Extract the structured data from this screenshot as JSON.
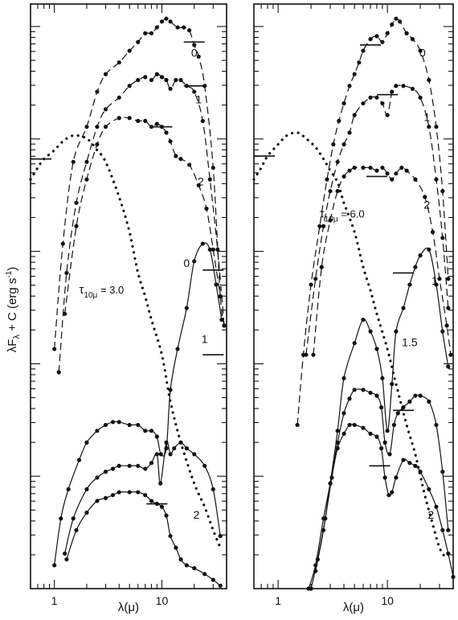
{
  "chart_data": {
    "type": "line",
    "ylabel": "λF",
    "ylabel_sub": "λ",
    "ylabel_rest": " + C (erg s",
    "ylabel_sup": "-1",
    "ylabel_close": ")",
    "yscale": "log",
    "panels": [
      {
        "xlabel": "λ(μ)",
        "xscale": "log",
        "xlim": [
          0.6,
          40
        ],
        "ylim": [
          0,
          100
        ],
        "xtick_labels": [
          {
            "value": 1,
            "label": "1"
          },
          {
            "value": 10,
            "label": "10"
          }
        ],
        "annotation": {
          "prefix": "τ",
          "sub": "10μ",
          "suffix": " = 3.0",
          "x": 1.7,
          "y": 50.5
        },
        "series": [
          {
            "label": "0",
            "style": "dashed",
            "label_at": [
              20,
              91
            ],
            "x": [
              1.0,
              1.2,
              1.5,
              2.0,
              2.5,
              3.0,
              4.0,
              5.0,
              6.0,
              7.0,
              8.0,
              9.0,
              10.0,
              11.0,
              12.0,
              14.0,
              16.0,
              18.0,
              20.0,
              22.0,
              25.0,
              30.0,
              35.0,
              38.0
            ],
            "y": [
              41,
              59,
              73,
              79,
              85,
              88,
              90,
              92,
              93.5,
              95,
              95,
              96,
              97,
              97.5,
              97,
              96,
              96,
              95.5,
              93,
              91,
              86,
              72,
              50,
              45
            ],
            "tick": {
              "x": 20,
              "y": 93.5
            }
          },
          {
            "label": "1",
            "style": "dashed",
            "label_at": [
              22,
              83
            ],
            "x": [
              1.1,
              1.3,
              1.6,
              2.0,
              2.5,
              3.0,
              4.0,
              5.0,
              6.0,
              7.0,
              8.0,
              9.0,
              10.0,
              11.0,
              12.0,
              13.5,
              15.0,
              17.0,
              20.0,
              24.0,
              28.0,
              33.0,
              38.0
            ],
            "y": [
              37,
              54,
              66,
              73,
              79,
              82,
              84,
              86,
              87,
              87.5,
              87,
              88,
              87.5,
              87,
              85.5,
              87,
              87,
              86,
              85,
              80,
              70,
              58,
              45
            ],
            "tick": {
              "x": 20,
              "y": 86
            }
          },
          {
            "label": "2",
            "style": "dashed",
            "label_at": [
              23,
              69
            ],
            "x": [
              1.25,
              1.6,
              2.0,
              2.5,
              3.0,
              4.0,
              5.0,
              6.0,
              7.0,
              8.0,
              9.0,
              10.0,
              11.0,
              12.0,
              13.5,
              15.0,
              18.0,
              22.0,
              26.0,
              30.0,
              35.0
            ],
            "y": [
              47,
              62,
              70,
              76,
              79,
              80.5,
              80.5,
              80,
              80,
              79,
              79.5,
              79,
              78,
              76.5,
              74,
              73.5,
              72.5,
              69,
              65,
              58,
              50
            ],
            "tick": {
              "x": 10,
              "y": 79
            }
          },
          {
            "label": "0",
            "style": "solid",
            "label_at": [
              17,
              55
            ],
            "x": [
              1.0,
              1.15,
              1.35,
              1.7,
              2.0,
              2.5,
              3.0,
              3.5,
              4.0,
              5.0,
              6.0,
              7.0,
              8.0,
              9.0,
              9.8,
              11.0,
              12.0,
              14.0,
              17.0,
              20.0,
              24.0,
              28.0,
              32.0,
              36.0
            ],
            "y": [
              4,
              12,
              17,
              22,
              25,
              27,
              28,
              28.5,
              28.5,
              28,
              28,
              27,
              27,
              26,
              23,
              24,
              34,
              41,
              48,
              56,
              59,
              58,
              52,
              46
            ],
            "tick": {
              "x": 30,
              "y": 54.5
            }
          },
          {
            "label": "1",
            "style": "solid",
            "label_at": [
              25,
              42
            ],
            "x": [
              1.25,
              1.5,
              2.0,
              2.5,
              3.0,
              3.5,
              4.0,
              5.0,
              6.0,
              7.0,
              8.0,
              9.0,
              9.7,
              11.0,
              12.0,
              13.0,
              15.0,
              17.0,
              20.0,
              25.0,
              30.0,
              35.0
            ],
            "y": [
              6,
              12,
              17,
              19,
              20,
              20.5,
              21,
              21,
              21,
              20.5,
              21.5,
              23,
              18,
              25,
              23,
              24,
              25,
              24,
              23,
              21,
              17,
              9
            ],
            "tick": {
              "x": 30,
              "y": 40
            }
          },
          {
            "label": "2",
            "style": "solid",
            "label_at": [
              21,
              12
            ],
            "x": [
              1.3,
              1.6,
              2.0,
              2.5,
              3.0,
              3.5,
              4.0,
              5.0,
              6.0,
              7.0,
              8.0,
              9.0,
              10.0,
              11.0,
              12.0,
              13.5,
              15.0,
              17.0,
              20.0,
              25.0,
              30.0,
              35.0
            ],
            "y": [
              5,
              10,
              13,
              15,
              15.5,
              16,
              16.5,
              16.5,
              16.5,
              16,
              15,
              14.5,
              14,
              12.5,
              9,
              7,
              5,
              4,
              3.5,
              2.5,
              1.5,
              0.5
            ],
            "tick": {
              "x": 9,
              "y": 14.5
            }
          },
          {
            "label": "",
            "style": "dotted",
            "label_at": null,
            "x": [
              0.6,
              0.7,
              0.8,
              1.0,
              1.2,
              1.5,
              2.0,
              2.5,
              3.0,
              4.0,
              5.0,
              6.0,
              7.0,
              8.0,
              10.0,
              12.0,
              15.0,
              20.0,
              25.0,
              30.0,
              35.0
            ],
            "y": [
              70,
              72,
              73.5,
              75,
              76.5,
              77.5,
              77,
              75,
              73,
              67,
              61,
              54,
              50,
              46,
              40,
              32,
              25,
              18,
              14,
              10,
              7
            ],
            "tick": {
              "x": 0.75,
              "y": 73.5
            }
          }
        ]
      },
      {
        "xlabel": "λ(μ)",
        "xscale": "log",
        "xlim": [
          0.6,
          40
        ],
        "ylim": [
          0,
          100
        ],
        "xtick_labels": [
          {
            "value": 1,
            "label": "1"
          },
          {
            "value": 10,
            "label": "10"
          }
        ],
        "annotation": {
          "prefix": "τ",
          "sub": "10μ",
          "suffix": " = 6.0",
          "x": 2.4,
          "y": 63.5
        },
        "series": [
          {
            "label": "0",
            "style": "dashed",
            "label_at": [
              21,
              91
            ],
            "x": [
              1.5,
              1.7,
              2.0,
              2.4,
              2.8,
              3.2,
              3.6,
              4.0,
              4.5,
              5.0,
              5.5,
              6.0,
              7.0,
              8.0,
              9.0,
              10.0,
              11.0,
              12.0,
              13.0,
              15.0,
              17.0,
              20.0,
              24.0,
              28.0,
              32.0,
              36.0
            ],
            "y": [
              28,
              40,
              52,
              62,
              70,
              76,
              80,
              83,
              86,
              88,
              90,
              92,
              94,
              94.5,
              93.5,
              95,
              96.5,
              97.5,
              97,
              95,
              94,
              92,
              87,
              79,
              68,
              53
            ],
            "tick": {
              "x": 7,
              "y": 93
            }
          },
          {
            "label": "1",
            "style": "dashed",
            "label_at": [
              23,
              80
            ],
            "x": [
              1.8,
              2.2,
              2.6,
              3.0,
              3.5,
              4.0,
              4.5,
              5.0,
              6.0,
              7.0,
              8.0,
              9.0,
              10.0,
              11.0,
              12.0,
              14.0,
              17.0,
              20.0,
              24.0,
              28.0,
              32.0,
              36.0
            ],
            "y": [
              40,
              53,
              62,
              68,
              73,
              76,
              78,
              81,
              83,
              84,
              84,
              83,
              81,
              85,
              86,
              86,
              85.5,
              84,
              79,
              70,
              60,
              48
            ],
            "tick": {
              "x": 10,
              "y": 84.5
            }
          },
          {
            "label": "2",
            "style": "dashed",
            "label_at": [
              23,
              65
            ],
            "x": [
              2.1,
              2.5,
              3.0,
              3.5,
              4.0,
              4.5,
              5.0,
              6.0,
              7.0,
              8.0,
              9.0,
              10.0,
              11.0,
              12.0,
              13.5,
              15.0,
              18.0,
              22.0,
              26.0,
              30.0,
              35.0,
              38.0
            ],
            "y": [
              40,
              55,
              63,
              68,
              70.5,
              71.5,
              72,
              72,
              72,
              71.5,
              72,
              71,
              70,
              71,
              72,
              71.5,
              70,
              67,
              61,
              53,
              45,
              40
            ],
            "tick": {
              "x": 8,
              "y": 70.5
            }
          },
          {
            "label": "1",
            "style": "solid",
            "label_at": [
              27,
              52
            ],
            "x": [
              2.2,
              2.6,
              3.0,
              3.5,
              4.0,
              5.0,
              6.0,
              7.0,
              8.0,
              9.0,
              10.0,
              11.0,
              12.0,
              14.0,
              16.0,
              18.0,
              20.0,
              24.0,
              28.0,
              32.0,
              36.0
            ],
            "y": [
              3,
              10,
              18,
              27,
              36,
              42,
              46,
              44,
              41,
              36,
              27,
              35,
              44,
              48,
              52,
              55,
              57,
              58,
              52,
              44,
              38
            ],
            "tick": {
              "x": 14,
              "y": 54
            }
          },
          {
            "label": "1.5",
            "style": "solid",
            "label_at": [
              16,
              41.5
            ],
            "x": [
              1.9,
              2.2,
              2.6,
              3.0,
              3.5,
              4.0,
              4.5,
              5.0,
              6.0,
              7.0,
              8.0,
              8.8,
              9.5,
              10.5,
              11.5,
              12.5,
              14.0,
              16.0,
              18.0,
              20.0,
              24.0,
              28.0,
              32.0,
              36.0
            ],
            "y": [
              0,
              4,
              12,
              18,
              25,
              30,
              32.5,
              34,
              34,
              33.5,
              33,
              31,
              25,
              23,
              28,
              30,
              31,
              32,
              33,
              33,
              32,
              28,
              20,
              10
            ],
            "tick": {
              "x": 14,
              "y": 30.5
            }
          },
          {
            "label": "2",
            "style": "solid",
            "label_at": [
              25,
              12
            ],
            "x": [
              2.0,
              2.3,
              2.7,
              3.1,
              3.5,
              4.0,
              4.5,
              5.0,
              6.0,
              7.0,
              8.0,
              8.8,
              9.5,
              10.3,
              11.0,
              12.0,
              14.0,
              16.0,
              18.0,
              20.0,
              24.0,
              28.0,
              32.0,
              36.0,
              40.0
            ],
            "y": [
              0,
              5,
              12,
              19,
              24,
              26.5,
              28,
              28,
              27.5,
              26.5,
              26,
              24,
              19,
              16,
              16.5,
              19,
              22,
              21.5,
              21,
              20,
              17,
              14,
              10,
              6,
              2
            ],
            "tick": {
              "x": 8.5,
              "y": 21
            }
          },
          {
            "label": "",
            "style": "dotted",
            "label_at": null,
            "x": [
              0.6,
              0.7,
              0.8,
              1.0,
              1.2,
              1.5,
              1.8,
              2.2,
              2.6,
              3.0,
              3.5,
              4.0,
              5.0,
              6.0,
              7.0,
              8.0,
              10.0,
              12.0,
              15.0,
              18.0,
              22.0,
              26.0,
              30.0,
              35.0
            ],
            "y": [
              70,
              72,
              74,
              76,
              77.5,
              78,
              77,
              75.5,
              73.5,
              71.5,
              69.5,
              66,
              61,
              55,
              51,
              47,
              41,
              35,
              28,
              23,
              16,
              11,
              7,
              5
            ],
            "tick": {
              "x": 0.75,
              "y": 74
            }
          }
        ]
      }
    ]
  }
}
